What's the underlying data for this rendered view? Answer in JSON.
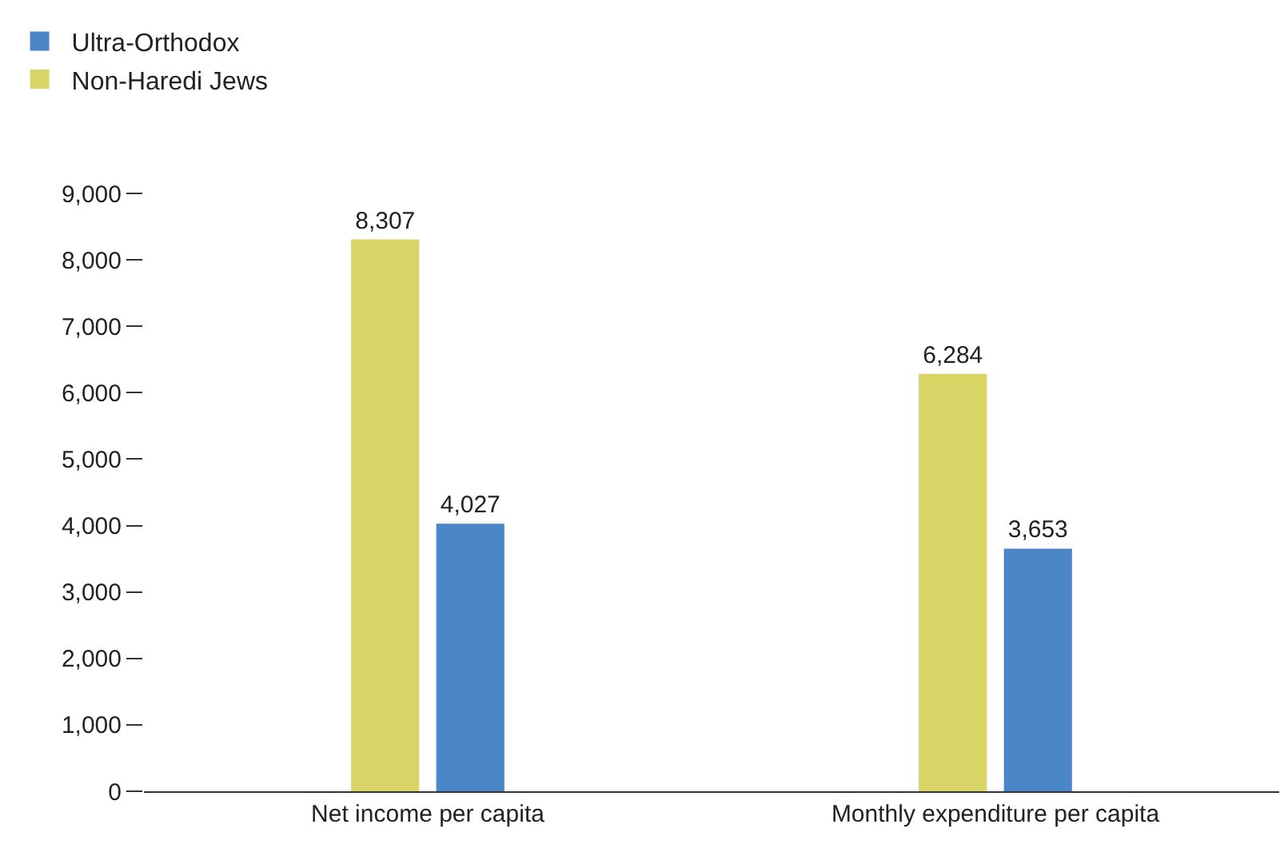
{
  "chart_data": {
    "type": "bar",
    "categories": [
      "Net income per capita",
      "Monthly expenditure per capita"
    ],
    "series": [
      {
        "name": "Non-Haredi Jews",
        "color": "#d8d466",
        "values": [
          8307,
          6284
        ],
        "value_labels": [
          "8,307",
          "6,284"
        ]
      },
      {
        "name": "Ultra-Orthodox",
        "color": "#4a86c8",
        "values": [
          4027,
          3653
        ],
        "value_labels": [
          "4,027",
          "3,653"
        ]
      }
    ],
    "ylim": [
      0,
      9000
    ],
    "yticks": [
      {
        "value": 0,
        "label": "0"
      },
      {
        "value": 1000,
        "label": "1,000"
      },
      {
        "value": 2000,
        "label": "2,000"
      },
      {
        "value": 3000,
        "label": "3,000"
      },
      {
        "value": 4000,
        "label": "4,000"
      },
      {
        "value": 5000,
        "label": "5,000"
      },
      {
        "value": 6000,
        "label": "6,000"
      },
      {
        "value": 7000,
        "label": "7,000"
      },
      {
        "value": 8000,
        "label": "8,000"
      },
      {
        "value": 9000,
        "label": "9,000"
      }
    ],
    "grid": false,
    "legend": "top left"
  }
}
